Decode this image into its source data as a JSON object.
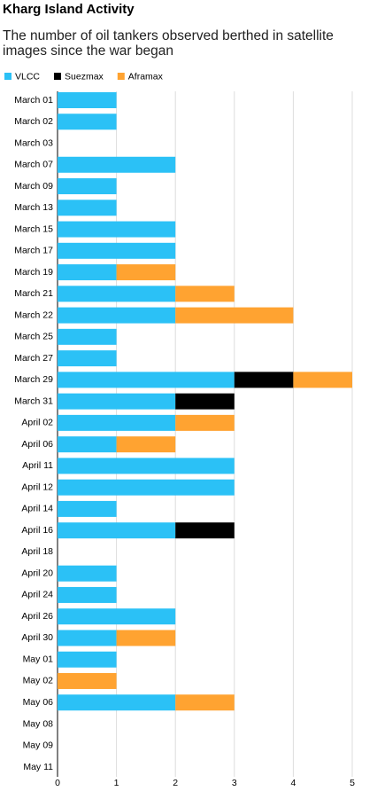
{
  "chart_data": {
    "type": "stacked-bar-horizontal",
    "title": "Kharg Island Activity",
    "subtitle": "The number of oil tankers observed berthed in satellite images since the war began",
    "categories": [
      "March 01",
      "March 02",
      "March 03",
      "March 07",
      "March 09",
      "March 13",
      "March 15",
      "March 17",
      "March 19",
      "March 21",
      "March 22",
      "March 25",
      "March 27",
      "March 29",
      "March 31",
      "April 02",
      "April 06",
      "April 11",
      "April 12",
      "April 14",
      "April 16",
      "April 18",
      "April 20",
      "April 24",
      "April 26",
      "April 30",
      "May 01",
      "May 02",
      "May 06",
      "May 08",
      "May 09",
      "May 11"
    ],
    "series": [
      {
        "name": "VLCC",
        "color": "#2bc1f6",
        "values": [
          1,
          1,
          0,
          2,
          1,
          1,
          2,
          2,
          1,
          2,
          2,
          1,
          1,
          3,
          2,
          2,
          1,
          3,
          3,
          1,
          2,
          0,
          1,
          1,
          2,
          1,
          1,
          0,
          2,
          0,
          0,
          0
        ]
      },
      {
        "name": "Suezmax",
        "color": "#000000",
        "values": [
          0,
          0,
          0,
          0,
          0,
          0,
          0,
          0,
          0,
          0,
          0,
          0,
          0,
          1,
          1,
          0,
          0,
          0,
          0,
          0,
          1,
          0,
          0,
          0,
          0,
          0,
          0,
          0,
          0,
          0,
          0,
          0
        ]
      },
      {
        "name": "Aframax",
        "color": "#ffa331",
        "values": [
          0,
          0,
          0,
          0,
          0,
          0,
          0,
          0,
          1,
          1,
          2,
          0,
          0,
          1,
          0,
          1,
          1,
          0,
          0,
          0,
          0,
          0,
          0,
          0,
          0,
          1,
          0,
          1,
          1,
          0,
          0,
          0
        ]
      }
    ],
    "xlim": [
      0,
      5
    ],
    "xticks": [
      0,
      1,
      2,
      3,
      4,
      5
    ],
    "grid": true
  }
}
